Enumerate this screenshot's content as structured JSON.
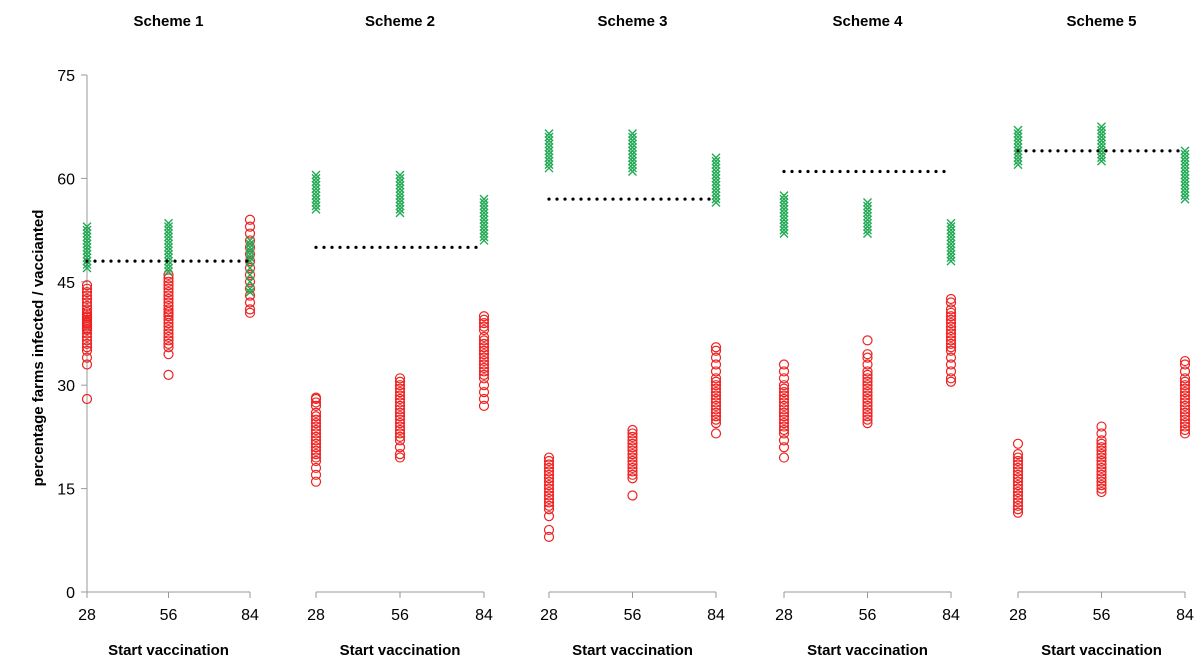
{
  "chart_data": {
    "type": "scatter",
    "ylabel": "percentage farms infected / vaccianted",
    "ylim": [
      0,
      75
    ],
    "y_ticks": [
      "0",
      "15",
      "30",
      "45",
      "60",
      "75"
    ],
    "grid": false,
    "legend": "none",
    "colors": {
      "infected": "#ee2222",
      "vaccinated": "#22aa55",
      "reference": "#000000"
    },
    "panels": [
      {
        "title": "Scheme 1",
        "xlabel": "Start vaccination",
        "x_ticks": [
          "28",
          "56",
          "84"
        ],
        "reference": 48,
        "series": [
          {
            "marker": "circle",
            "x": 28,
            "y": [
              28,
              33,
              34,
              35,
              35.5,
              36,
              36.5,
              37,
              37.5,
              38,
              38.2,
              38.5,
              38.8,
              39,
              39.2,
              39.5,
              39.8,
              40,
              40.3,
              40.6,
              41,
              41.5,
              42,
              42.5,
              43,
              43.5,
              44,
              44.5
            ]
          },
          {
            "marker": "circle",
            "x": 56,
            "y": [
              31.5,
              34.5,
              35.5,
              36,
              36.5,
              37,
              37.5,
              38,
              38.5,
              39,
              39.5,
              40,
              40.3,
              40.6,
              41,
              41.5,
              42,
              42.5,
              43,
              43.5,
              44,
              44.5,
              45,
              45.5,
              46
            ]
          },
          {
            "marker": "circle",
            "x": 84,
            "y": [
              40.5,
              41,
              42,
              43,
              44,
              45,
              46,
              47,
              48,
              49,
              50,
              51,
              52,
              53,
              54
            ]
          },
          {
            "marker": "cross",
            "x": 28,
            "y": [
              47,
              47.5,
              48,
              48.5,
              49,
              49.5,
              50,
              50.5,
              51,
              51.5,
              52,
              52.5,
              53
            ]
          },
          {
            "marker": "cross",
            "x": 56,
            "y": [
              46.5,
              47,
              47.5,
              48,
              48.5,
              49,
              49.5,
              50,
              50.5,
              51,
              51.5,
              52,
              52.5,
              53,
              53.5
            ]
          },
          {
            "marker": "cross",
            "x": 84,
            "y": [
              43.5,
              44,
              45,
              46,
              47,
              48,
              48.5,
              49,
              49.5,
              50,
              50.5,
              51
            ]
          }
        ]
      },
      {
        "title": "Scheme 2",
        "xlabel": "Start vaccination",
        "x_ticks": [
          "28",
          "56",
          "84"
        ],
        "reference": 50,
        "series": [
          {
            "marker": "circle",
            "x": 28,
            "y": [
              16,
              17,
              18,
              19,
              19.5,
              20,
              20.5,
              21,
              21.5,
              22,
              22.5,
              23,
              23.5,
              24,
              24.5,
              25,
              25.5,
              26,
              27,
              27.5,
              28,
              28.2
            ]
          },
          {
            "marker": "circle",
            "x": 56,
            "y": [
              19.5,
              20,
              21,
              22,
              22.5,
              23,
              23.5,
              24,
              24.5,
              25,
              25.5,
              26,
              26.5,
              27,
              27.5,
              28,
              28.5,
              29,
              29.5,
              30,
              30.5,
              31
            ]
          },
          {
            "marker": "circle",
            "x": 84,
            "y": [
              27,
              28,
              29,
              30,
              31,
              31.5,
              32,
              32.5,
              33,
              33.5,
              34,
              34.5,
              35,
              35.5,
              36,
              36.5,
              37,
              38,
              38.5,
              39,
              39.5,
              40
            ]
          },
          {
            "marker": "cross",
            "x": 28,
            "y": [
              55.5,
              56,
              56.5,
              57,
              57.5,
              58,
              58.5,
              59,
              59.5,
              60,
              60.5
            ]
          },
          {
            "marker": "cross",
            "x": 56,
            "y": [
              55,
              55.5,
              56,
              56.5,
              57,
              57.5,
              58,
              58.5,
              59,
              59.5,
              60,
              60.5
            ]
          },
          {
            "marker": "cross",
            "x": 84,
            "y": [
              51,
              51.5,
              52,
              52.5,
              53,
              53.5,
              54,
              54.5,
              55,
              55.5,
              56,
              56.5,
              57
            ]
          }
        ]
      },
      {
        "title": "Scheme 3",
        "xlabel": "Start vaccination",
        "x_ticks": [
          "28",
          "56",
          "84"
        ],
        "reference": 57,
        "series": [
          {
            "marker": "circle",
            "x": 28,
            "y": [
              8,
              9,
              11,
              12,
              12.5,
              13,
              13.5,
              14,
              14.5,
              15,
              15.5,
              16,
              16.5,
              17,
              17.5,
              18,
              18.5,
              19,
              19.5
            ]
          },
          {
            "marker": "circle",
            "x": 56,
            "y": [
              14,
              16.5,
              17,
              17.5,
              18,
              18.5,
              19,
              19.5,
              20,
              20.5,
              21,
              21.5,
              22,
              22.5,
              23,
              23.5
            ]
          },
          {
            "marker": "circle",
            "x": 84,
            "y": [
              23,
              24.5,
              25,
              25.5,
              26,
              26.5,
              27,
              27.5,
              28,
              28.5,
              29,
              29.5,
              30,
              30.5,
              31,
              32,
              33,
              34,
              35,
              35.5
            ]
          },
          {
            "marker": "cross",
            "x": 28,
            "y": [
              61.5,
              62,
              62.5,
              63,
              63.5,
              64,
              64.5,
              65,
              65.5,
              66,
              66.5
            ]
          },
          {
            "marker": "cross",
            "x": 56,
            "y": [
              61,
              61.5,
              62,
              62.5,
              63,
              63.5,
              64,
              64.5,
              65,
              65.5,
              66,
              66.5
            ]
          },
          {
            "marker": "cross",
            "x": 84,
            "y": [
              56.5,
              57,
              57.5,
              58,
              58.5,
              59,
              59.5,
              60,
              60.5,
              61,
              61.5,
              62,
              62.5,
              63
            ]
          }
        ]
      },
      {
        "title": "Scheme 4",
        "xlabel": "Start vaccination",
        "x_ticks": [
          "28",
          "56",
          "84"
        ],
        "reference": 61,
        "series": [
          {
            "marker": "circle",
            "x": 28,
            "y": [
              19.5,
              21,
              22,
              23,
              23.5,
              24,
              24.5,
              25,
              25.5,
              26,
              26.5,
              27,
              27.5,
              28,
              28.5,
              29,
              29.5,
              30,
              31,
              32,
              33
            ]
          },
          {
            "marker": "circle",
            "x": 56,
            "y": [
              24.5,
              25,
              25.5,
              26,
              26.5,
              27,
              27.5,
              28,
              28.5,
              29,
              29.5,
              30,
              30.5,
              31,
              31.5,
              32,
              33,
              34,
              34.5,
              36.5
            ]
          },
          {
            "marker": "circle",
            "x": 84,
            "y": [
              30.5,
              31,
              32,
              33,
              34,
              35,
              35.5,
              36,
              36.5,
              37,
              37.5,
              38,
              38.5,
              39,
              39.5,
              40,
              40.5,
              41,
              42,
              42.5
            ]
          },
          {
            "marker": "cross",
            "x": 28,
            "y": [
              52,
              52.5,
              53,
              53.5,
              54,
              54.5,
              55,
              55.5,
              56,
              56.5,
              57,
              57.5
            ]
          },
          {
            "marker": "cross",
            "x": 56,
            "y": [
              52,
              52.5,
              53,
              53.5,
              54,
              54.5,
              55,
              55.5,
              56,
              56.5
            ]
          },
          {
            "marker": "cross",
            "x": 84,
            "y": [
              48,
              48.5,
              49,
              49.5,
              50,
              50.5,
              51,
              51.5,
              52,
              52.5,
              53,
              53.5
            ]
          }
        ]
      },
      {
        "title": "Scheme 5",
        "xlabel": "Start vaccination",
        "x_ticks": [
          "28",
          "56",
          "84"
        ],
        "reference": 64,
        "series": [
          {
            "marker": "circle",
            "x": 28,
            "y": [
              11.5,
              12,
              12.5,
              13,
              13.5,
              14,
              14.5,
              15,
              15.5,
              16,
              16.5,
              17,
              17.5,
              18,
              18.5,
              19,
              19.5,
              20,
              21.5
            ]
          },
          {
            "marker": "circle",
            "x": 56,
            "y": [
              14.5,
              15,
              15.5,
              16,
              16.5,
              17,
              17.5,
              18,
              18.5,
              19,
              19.5,
              20,
              20.5,
              21,
              21.5,
              22,
              23,
              24
            ]
          },
          {
            "marker": "circle",
            "x": 84,
            "y": [
              23,
              23.5,
              24,
              24.5,
              25,
              25.5,
              26,
              26.5,
              27,
              27.5,
              28,
              28.5,
              29,
              29.5,
              30,
              30.5,
              31,
              32,
              33,
              33.5
            ]
          },
          {
            "marker": "cross",
            "x": 28,
            "y": [
              62,
              62.5,
              63,
              63.5,
              64,
              64.5,
              65,
              65.5,
              66,
              66.5,
              67
            ]
          },
          {
            "marker": "cross",
            "x": 56,
            "y": [
              62.5,
              63,
              63.5,
              64,
              64.5,
              65,
              65.5,
              66,
              66.5,
              67,
              67.5
            ]
          },
          {
            "marker": "cross",
            "x": 84,
            "y": [
              57,
              57.5,
              58,
              58.5,
              59,
              59.5,
              60,
              60.5,
              61,
              61.5,
              62,
              62.5,
              63,
              63.5,
              64
            ]
          }
        ]
      }
    ]
  }
}
